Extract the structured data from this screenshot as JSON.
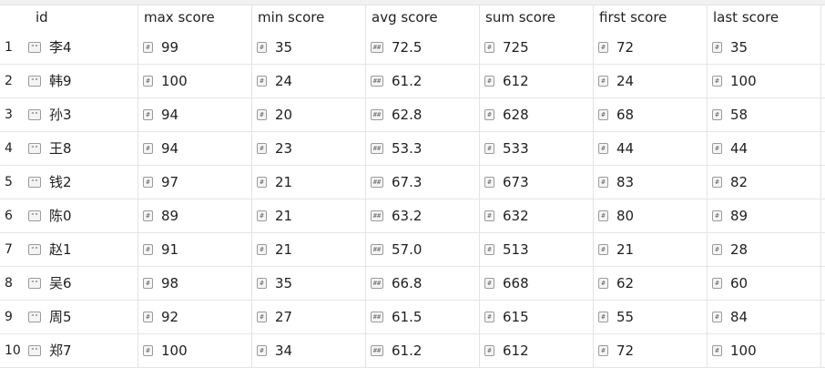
{
  "icons": {
    "string": "quote-type-icon",
    "integer": "integer-type-icon",
    "float": "float-type-icon"
  },
  "columns": [
    "id",
    "max score",
    "min score",
    "avg score",
    "sum score",
    "first score",
    "last score"
  ],
  "rows": [
    {
      "num": "1",
      "id": "李4",
      "max": "99",
      "min": "35",
      "avg": "72.5",
      "sum": "725",
      "first": "72",
      "last": "35"
    },
    {
      "num": "2",
      "id": "韩9",
      "max": "100",
      "min": "24",
      "avg": "61.2",
      "sum": "612",
      "first": "24",
      "last": "100"
    },
    {
      "num": "3",
      "id": "孙3",
      "max": "94",
      "min": "20",
      "avg": "62.8",
      "sum": "628",
      "first": "68",
      "last": "58"
    },
    {
      "num": "4",
      "id": "王8",
      "max": "94",
      "min": "23",
      "avg": "53.3",
      "sum": "533",
      "first": "44",
      "last": "44"
    },
    {
      "num": "5",
      "id": "钱2",
      "max": "97",
      "min": "21",
      "avg": "67.3",
      "sum": "673",
      "first": "83",
      "last": "82"
    },
    {
      "num": "6",
      "id": "陈0",
      "max": "89",
      "min": "21",
      "avg": "63.2",
      "sum": "632",
      "first": "80",
      "last": "89"
    },
    {
      "num": "7",
      "id": "赵1",
      "max": "91",
      "min": "21",
      "avg": "57.0",
      "sum": "513",
      "first": "21",
      "last": "28"
    },
    {
      "num": "8",
      "id": "吴6",
      "max": "98",
      "min": "35",
      "avg": "66.8",
      "sum": "668",
      "first": "62",
      "last": "60"
    },
    {
      "num": "9",
      "id": "周5",
      "max": "92",
      "min": "27",
      "avg": "61.5",
      "sum": "615",
      "first": "55",
      "last": "84"
    },
    {
      "num": "10",
      "id": "郑7",
      "max": "100",
      "min": "34",
      "avg": "61.2",
      "sum": "612",
      "first": "72",
      "last": "100"
    }
  ]
}
